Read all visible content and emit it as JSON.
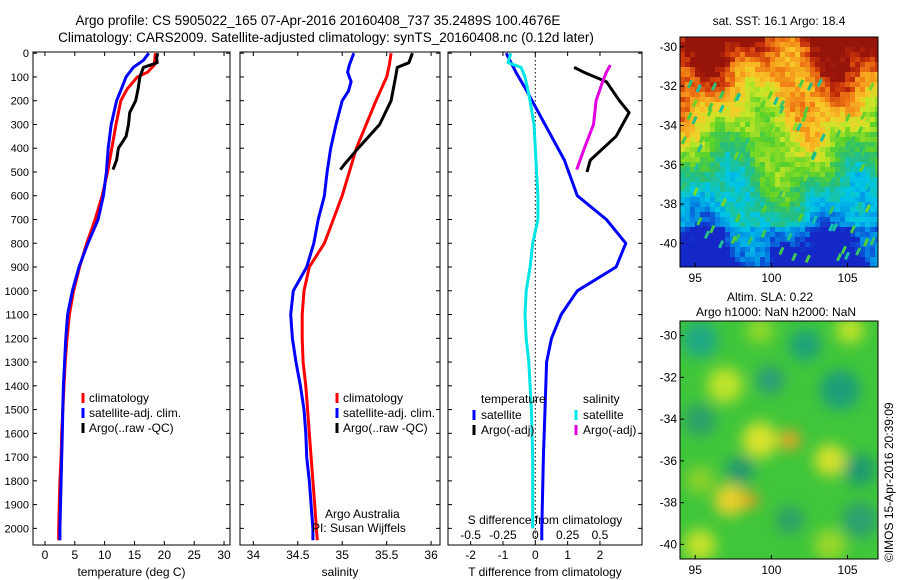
{
  "title": {
    "line1": "Argo profile: CS 5905022_165 07-Apr-2016 20160408_737 35.2489S 100.4676E",
    "line2": "Climatology: CARS2009. Satellite-adjusted climatology: synTS_20160408.nc (0.12d later)"
  },
  "credits": {
    "org": "Argo Australia",
    "pi": "PI: Susan Wijffels",
    "stamp": "©IMOS 15-Apr-2016 20:39:09"
  },
  "colors": {
    "climatology": "#ff0000",
    "satellite": "#0000ff",
    "argo": "#000000",
    "sal_satellite": "#00e5e5",
    "sal_argo": "#e000e0"
  },
  "chart_data": [
    {
      "id": "temperature",
      "type": "line",
      "xlabel": "temperature (deg C)",
      "xlim": [
        -2,
        31
      ],
      "ylim": [
        2070,
        -5
      ],
      "xticks": [
        0,
        5,
        10,
        15,
        20,
        25,
        30
      ],
      "yticks": [
        0,
        100,
        200,
        300,
        400,
        500,
        600,
        700,
        800,
        900,
        1000,
        1100,
        1200,
        1300,
        1400,
        1500,
        1600,
        1700,
        1800,
        1900,
        2000
      ],
      "legend": [
        "climatology",
        "satellite-adj. clim.",
        "Argo(..raw -QC)"
      ],
      "series": [
        {
          "name": "climatology",
          "color": "#ff0000",
          "points": [
            [
              18.5,
              0
            ],
            [
              18.3,
              50
            ],
            [
              17.2,
              80
            ],
            [
              15.5,
              100
            ],
            [
              13.8,
              150
            ],
            [
              12.7,
              200
            ],
            [
              11.9,
              300
            ],
            [
              11.2,
              400
            ],
            [
              10.5,
              500
            ],
            [
              9.6,
              600
            ],
            [
              8.4,
              700
            ],
            [
              7.0,
              800
            ],
            [
              5.8,
              900
            ],
            [
              4.8,
              1000
            ],
            [
              4.1,
              1100
            ],
            [
              3.7,
              1200
            ],
            [
              3.4,
              1300
            ],
            [
              3.2,
              1400
            ],
            [
              3.0,
              1500
            ],
            [
              2.8,
              1600
            ],
            [
              2.7,
              1700
            ],
            [
              2.5,
              1800
            ],
            [
              2.4,
              1900
            ],
            [
              2.3,
              2000
            ],
            [
              2.3,
              2050
            ]
          ]
        },
        {
          "name": "satellite-adj. clim.",
          "color": "#0000ff",
          "points": [
            [
              17.4,
              0
            ],
            [
              16.5,
              30
            ],
            [
              14.8,
              60
            ],
            [
              13.6,
              100
            ],
            [
              12.8,
              150
            ],
            [
              12.0,
              200
            ],
            [
              11.1,
              300
            ],
            [
              10.6,
              400
            ],
            [
              10.3,
              500
            ],
            [
              9.8,
              600
            ],
            [
              8.9,
              700
            ],
            [
              7.2,
              800
            ],
            [
              5.7,
              900
            ],
            [
              4.6,
              1000
            ],
            [
              3.8,
              1100
            ],
            [
              3.5,
              1200
            ],
            [
              3.3,
              1300
            ],
            [
              3.1,
              1400
            ],
            [
              3.0,
              1500
            ],
            [
              2.9,
              1600
            ],
            [
              2.8,
              1700
            ],
            [
              2.7,
              1800
            ],
            [
              2.6,
              1900
            ],
            [
              2.5,
              2000
            ],
            [
              2.5,
              2050
            ]
          ]
        },
        {
          "name": "Argo(..raw -QC)",
          "color": "#000000",
          "points": [
            [
              18.9,
              0
            ],
            [
              18.7,
              20
            ],
            [
              18.8,
              40
            ],
            [
              16.5,
              60
            ],
            [
              15.9,
              100
            ],
            [
              15.6,
              150
            ],
            [
              15.2,
              200
            ],
            [
              14.2,
              250
            ],
            [
              14.0,
              300
            ],
            [
              13.6,
              350
            ],
            [
              12.3,
              400
            ],
            [
              12.0,
              450
            ],
            [
              11.4,
              490
            ]
          ]
        }
      ]
    },
    {
      "id": "salinity",
      "type": "line",
      "xlabel": "salinity",
      "xlim": [
        33.85,
        36.1
      ],
      "ylim": [
        2070,
        -5
      ],
      "xticks": [
        34,
        34.5,
        35,
        35.5,
        36
      ],
      "legend": [
        "climatology",
        "satellite-adj. clim.",
        "Argo(..raw -QC)"
      ],
      "series": [
        {
          "name": "climatology",
          "color": "#ff0000",
          "points": [
            [
              35.55,
              0
            ],
            [
              35.53,
              50
            ],
            [
              35.5,
              100
            ],
            [
              35.38,
              200
            ],
            [
              35.27,
              300
            ],
            [
              35.16,
              400
            ],
            [
              35.08,
              500
            ],
            [
              35.0,
              600
            ],
            [
              34.9,
              700
            ],
            [
              34.8,
              800
            ],
            [
              34.63,
              900
            ],
            [
              34.57,
              1000
            ],
            [
              34.55,
              1100
            ],
            [
              34.55,
              1200
            ],
            [
              34.56,
              1300
            ],
            [
              34.59,
              1400
            ],
            [
              34.61,
              1500
            ],
            [
              34.63,
              1600
            ],
            [
              34.65,
              1700
            ],
            [
              34.67,
              1800
            ],
            [
              34.69,
              1900
            ],
            [
              34.71,
              2000
            ],
            [
              34.72,
              2050
            ]
          ]
        },
        {
          "name": "satellite-adj. clim.",
          "color": "#0000ff",
          "points": [
            [
              35.13,
              0
            ],
            [
              35.08,
              50
            ],
            [
              35.06,
              80
            ],
            [
              35.1,
              120
            ],
            [
              35.07,
              160
            ],
            [
              35.0,
              200
            ],
            [
              34.93,
              300
            ],
            [
              34.87,
              400
            ],
            [
              34.83,
              500
            ],
            [
              34.8,
              600
            ],
            [
              34.73,
              700
            ],
            [
              34.68,
              800
            ],
            [
              34.6,
              900
            ],
            [
              34.45,
              1000
            ],
            [
              34.42,
              1100
            ],
            [
              34.44,
              1200
            ],
            [
              34.48,
              1300
            ],
            [
              34.53,
              1400
            ],
            [
              34.57,
              1500
            ],
            [
              34.59,
              1600
            ],
            [
              34.6,
              1700
            ],
            [
              34.63,
              1800
            ],
            [
              34.65,
              1900
            ],
            [
              34.67,
              2000
            ],
            [
              34.67,
              2050
            ]
          ]
        },
        {
          "name": "Argo(..raw -QC)",
          "color": "#000000",
          "points": [
            [
              35.79,
              0
            ],
            [
              35.75,
              40
            ],
            [
              35.62,
              60
            ],
            [
              35.6,
              100
            ],
            [
              35.55,
              200
            ],
            [
              35.42,
              300
            ],
            [
              35.18,
              400
            ],
            [
              35.02,
              470
            ],
            [
              34.98,
              490
            ]
          ]
        }
      ]
    },
    {
      "id": "difference",
      "type": "line",
      "xlabel": "T difference from climatology",
      "x2label": "S difference from climatology",
      "xlim": [
        -2.7,
        3.3
      ],
      "x2lim": [
        -0.675,
        0.825
      ],
      "ylim": [
        2070,
        -5
      ],
      "xticks": [
        -2,
        -1,
        0,
        1,
        2
      ],
      "x2ticks": [
        "-0.5",
        "-0.25",
        "0",
        "0.25",
        "0.5"
      ],
      "x2tick_values": [
        -0.5,
        -0.25,
        0,
        0.25,
        0.5
      ],
      "legend_temperature": {
        "title": "temperature",
        "items": [
          "satellite",
          "Argo(-adj)"
        ]
      },
      "legend_salinity": {
        "title": "salinity",
        "items": [
          "satellite",
          "Argo(-adj)"
        ]
      },
      "series": [
        {
          "name": "satellite",
          "group": "temperature",
          "color": "#0000ff",
          "units": "T",
          "points": [
            [
              -0.9,
              0
            ],
            [
              -0.6,
              80
            ],
            [
              -0.3,
              150
            ],
            [
              0.3,
              300
            ],
            [
              0.9,
              450
            ],
            [
              1.3,
              600
            ],
            [
              2.2,
              700
            ],
            [
              2.8,
              800
            ],
            [
              2.5,
              900
            ],
            [
              1.3,
              1000
            ],
            [
              0.8,
              1100
            ],
            [
              0.5,
              1200
            ],
            [
              0.35,
              1300
            ],
            [
              0.3,
              1500
            ],
            [
              0.25,
              1700
            ],
            [
              0.2,
              2000
            ],
            [
              0.2,
              2050
            ]
          ]
        },
        {
          "name": "Argo(-adj)",
          "group": "temperature",
          "color": "#000000",
          "units": "T",
          "points": [
            [
              1.2,
              60
            ],
            [
              1.5,
              80
            ],
            [
              2.2,
              120
            ],
            [
              2.6,
              200
            ],
            [
              2.9,
              250
            ],
            [
              2.5,
              350
            ],
            [
              1.7,
              450
            ],
            [
              1.6,
              500
            ]
          ]
        },
        {
          "name": "satellite",
          "group": "salinity",
          "color": "#00e5e5",
          "units": "S",
          "points": [
            [
              -0.19,
              0
            ],
            [
              -0.21,
              40
            ],
            [
              -0.11,
              60
            ],
            [
              -0.08,
              100
            ],
            [
              -0.06,
              150
            ],
            [
              -0.04,
              200
            ],
            [
              -0.01,
              300
            ],
            [
              0,
              400
            ],
            [
              0.01,
              500
            ],
            [
              0.02,
              600
            ],
            [
              0.02,
              700
            ],
            [
              -0.02,
              800
            ],
            [
              -0.04,
              900
            ],
            [
              -0.07,
              1000
            ],
            [
              -0.08,
              1100
            ],
            [
              -0.07,
              1200
            ],
            [
              -0.05,
              1300
            ],
            [
              -0.04,
              1400
            ],
            [
              -0.03,
              1500
            ],
            [
              -0.02,
              1700
            ],
            [
              -0.02,
              2000
            ]
          ]
        },
        {
          "name": "Argo(-adj)",
          "group": "salinity",
          "color": "#e000e0",
          "units": "S",
          "points": [
            [
              0.58,
              50
            ],
            [
              0.55,
              80
            ],
            [
              0.52,
              120
            ],
            [
              0.47,
              200
            ],
            [
              0.45,
              300
            ],
            [
              0.38,
              400
            ],
            [
              0.32,
              490
            ]
          ]
        }
      ]
    },
    {
      "id": "sst-map",
      "type": "heatmap",
      "title": "sat. SST: 16.1  Argo: 18.4",
      "xlim": [
        94,
        107
      ],
      "ylim": [
        -41.2,
        -29.5
      ],
      "xticks": [
        95,
        100,
        105
      ],
      "yticks": [
        -30,
        -32,
        -34,
        -36,
        -38,
        -40
      ]
    },
    {
      "id": "sla-map",
      "type": "heatmap",
      "title_line1": "Altim. SLA: 0.22",
      "title_line2": "Argo h1000: NaN h2000: NaN",
      "xlim": [
        94,
        107
      ],
      "ylim": [
        -40.7,
        -29.3
      ],
      "xticks": [
        95,
        100,
        105
      ],
      "yticks": [
        -30,
        -32,
        -34,
        -36,
        -38,
        -40
      ]
    }
  ]
}
